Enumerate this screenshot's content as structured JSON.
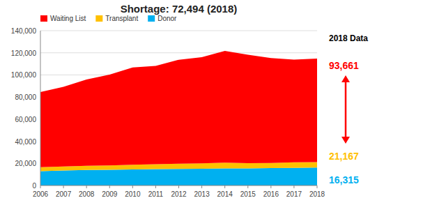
{
  "chart_data": {
    "type": "area",
    "stacked": true,
    "title": "Shortage: 72,494 (2018)",
    "x": [
      2006,
      2007,
      2008,
      2009,
      2010,
      2011,
      2012,
      2013,
      2014,
      2015,
      2016,
      2017,
      2018
    ],
    "xlim": [
      2006,
      2018
    ],
    "xticks": [
      2006,
      2007,
      2008,
      2009,
      2010,
      2011,
      2012,
      2013,
      2014,
      2015,
      2016,
      2017,
      2018
    ],
    "series": [
      {
        "name": "Donor",
        "color": "#00b0f0",
        "values": [
          13000,
          13500,
          14000,
          14200,
          14500,
          14800,
          15000,
          15200,
          15500,
          15500,
          15800,
          16000,
          16315
        ]
      },
      {
        "name": "Transplant",
        "color": "#ffc000",
        "values": [
          3500,
          3700,
          3800,
          4000,
          4200,
          4400,
          4700,
          4900,
          5200,
          4700,
          4500,
          4900,
          4852
        ]
      },
      {
        "name": "Waiting List",
        "color": "#ff0000",
        "values": [
          68000,
          72000,
          78000,
          82000,
          88000,
          89000,
          94000,
          96000,
          101000,
          98000,
          95000,
          93000,
          93661
        ]
      }
    ],
    "ylim": [
      0,
      140000
    ],
    "yticks": [
      0,
      {
        "value": 20000,
        "label": "20,000"
      },
      {
        "value": 40000,
        "label": "40,000"
      },
      {
        "value": 60000,
        "label": "60,000"
      },
      {
        "value": 80000,
        "label": "80,000"
      },
      {
        "value": 100000,
        "label": "100,000"
      },
      {
        "value": 120000,
        "label": "120,000"
      },
      {
        "value": 140000,
        "label": "140,000"
      }
    ],
    "grid": true,
    "legend": "upper left",
    "annotations": [
      {
        "text": "2018 Data",
        "color": "#000000"
      },
      {
        "text": "93,661",
        "color": "#ff0000"
      },
      {
        "text": "21,167",
        "color": "#ffc000"
      },
      {
        "text": "16,315",
        "color": "#00b0f0"
      }
    ]
  }
}
